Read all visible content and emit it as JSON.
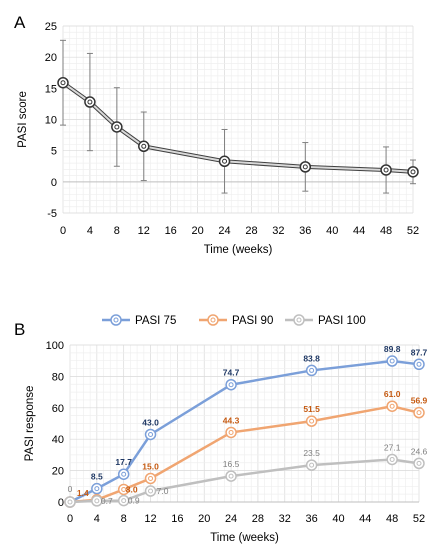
{
  "chart_data": [
    {
      "type": "line",
      "panel_label": "A",
      "xlabel": "Time (weeks)",
      "ylabel": "PASI score",
      "x_ticks": [
        0,
        4,
        8,
        12,
        16,
        20,
        24,
        28,
        32,
        36,
        40,
        44,
        48,
        52
      ],
      "y_ticks": [
        -5,
        0,
        5,
        10,
        15,
        20,
        25
      ],
      "xlim": [
        0,
        52
      ],
      "ylim": [
        -5,
        25
      ],
      "grid": true,
      "series": [
        {
          "color": "#555555",
          "x": [
            0,
            4,
            8,
            12,
            24,
            36,
            48,
            52
          ],
          "y": [
            15.9,
            12.8,
            8.8,
            5.7,
            3.3,
            2.4,
            1.9,
            1.6
          ],
          "error_upper": [
            22.7,
            20.6,
            15.1,
            11.2,
            8.4,
            6.3,
            5.6,
            3.5
          ],
          "error_lower": [
            9.1,
            5.0,
            2.5,
            0.2,
            -1.8,
            -1.5,
            -1.8,
            -0.3
          ]
        }
      ]
    },
    {
      "type": "line",
      "panel_label": "B",
      "xlabel": "Time (weeks)",
      "ylabel": "PASI response",
      "x_ticks": [
        0,
        4,
        8,
        12,
        16,
        20,
        24,
        28,
        32,
        36,
        40,
        44,
        48,
        52
      ],
      "y_ticks": [
        0,
        20,
        40,
        60,
        80,
        100
      ],
      "xlim": [
        0,
        52
      ],
      "ylim": [
        0,
        100
      ],
      "grid": true,
      "legend_position": "top",
      "series": [
        {
          "name": "PASI 75",
          "color": "#7b9fd9",
          "label_color": "#1f3864",
          "x": [
            0,
            4,
            8,
            12,
            24,
            36,
            48,
            52
          ],
          "y": [
            0,
            8.5,
            17.7,
            43.0,
            74.7,
            83.8,
            89.8,
            87.7
          ],
          "labels": [
            "",
            "8.5",
            "17.7",
            "43.0",
            "74.7",
            "83.8",
            "89.8",
            "87.7"
          ]
        },
        {
          "name": "PASI 90",
          "color": "#f0a571",
          "label_color": "#c55a11",
          "x": [
            0,
            4,
            8,
            12,
            24,
            36,
            48,
            52
          ],
          "y": [
            0,
            1.4,
            8.0,
            15.0,
            44.3,
            51.5,
            61.0,
            56.9
          ],
          "labels": [
            "",
            "1.4",
            "8.0",
            "15.0",
            "44.3",
            "51.5",
            "61.0",
            "56.9"
          ]
        },
        {
          "name": "PASI 100",
          "color": "#bfbfbf",
          "label_color": "#7f7f7f",
          "x": [
            0,
            4,
            8,
            12,
            24,
            36,
            48,
            52
          ],
          "y": [
            0,
            0.7,
            0.9,
            7.0,
            16.5,
            23.5,
            27.1,
            24.6
          ],
          "labels": [
            "0",
            "0.7",
            "0.9",
            "7.0",
            "16.5",
            "23.5",
            "27.1",
            "24.6"
          ]
        }
      ]
    }
  ]
}
